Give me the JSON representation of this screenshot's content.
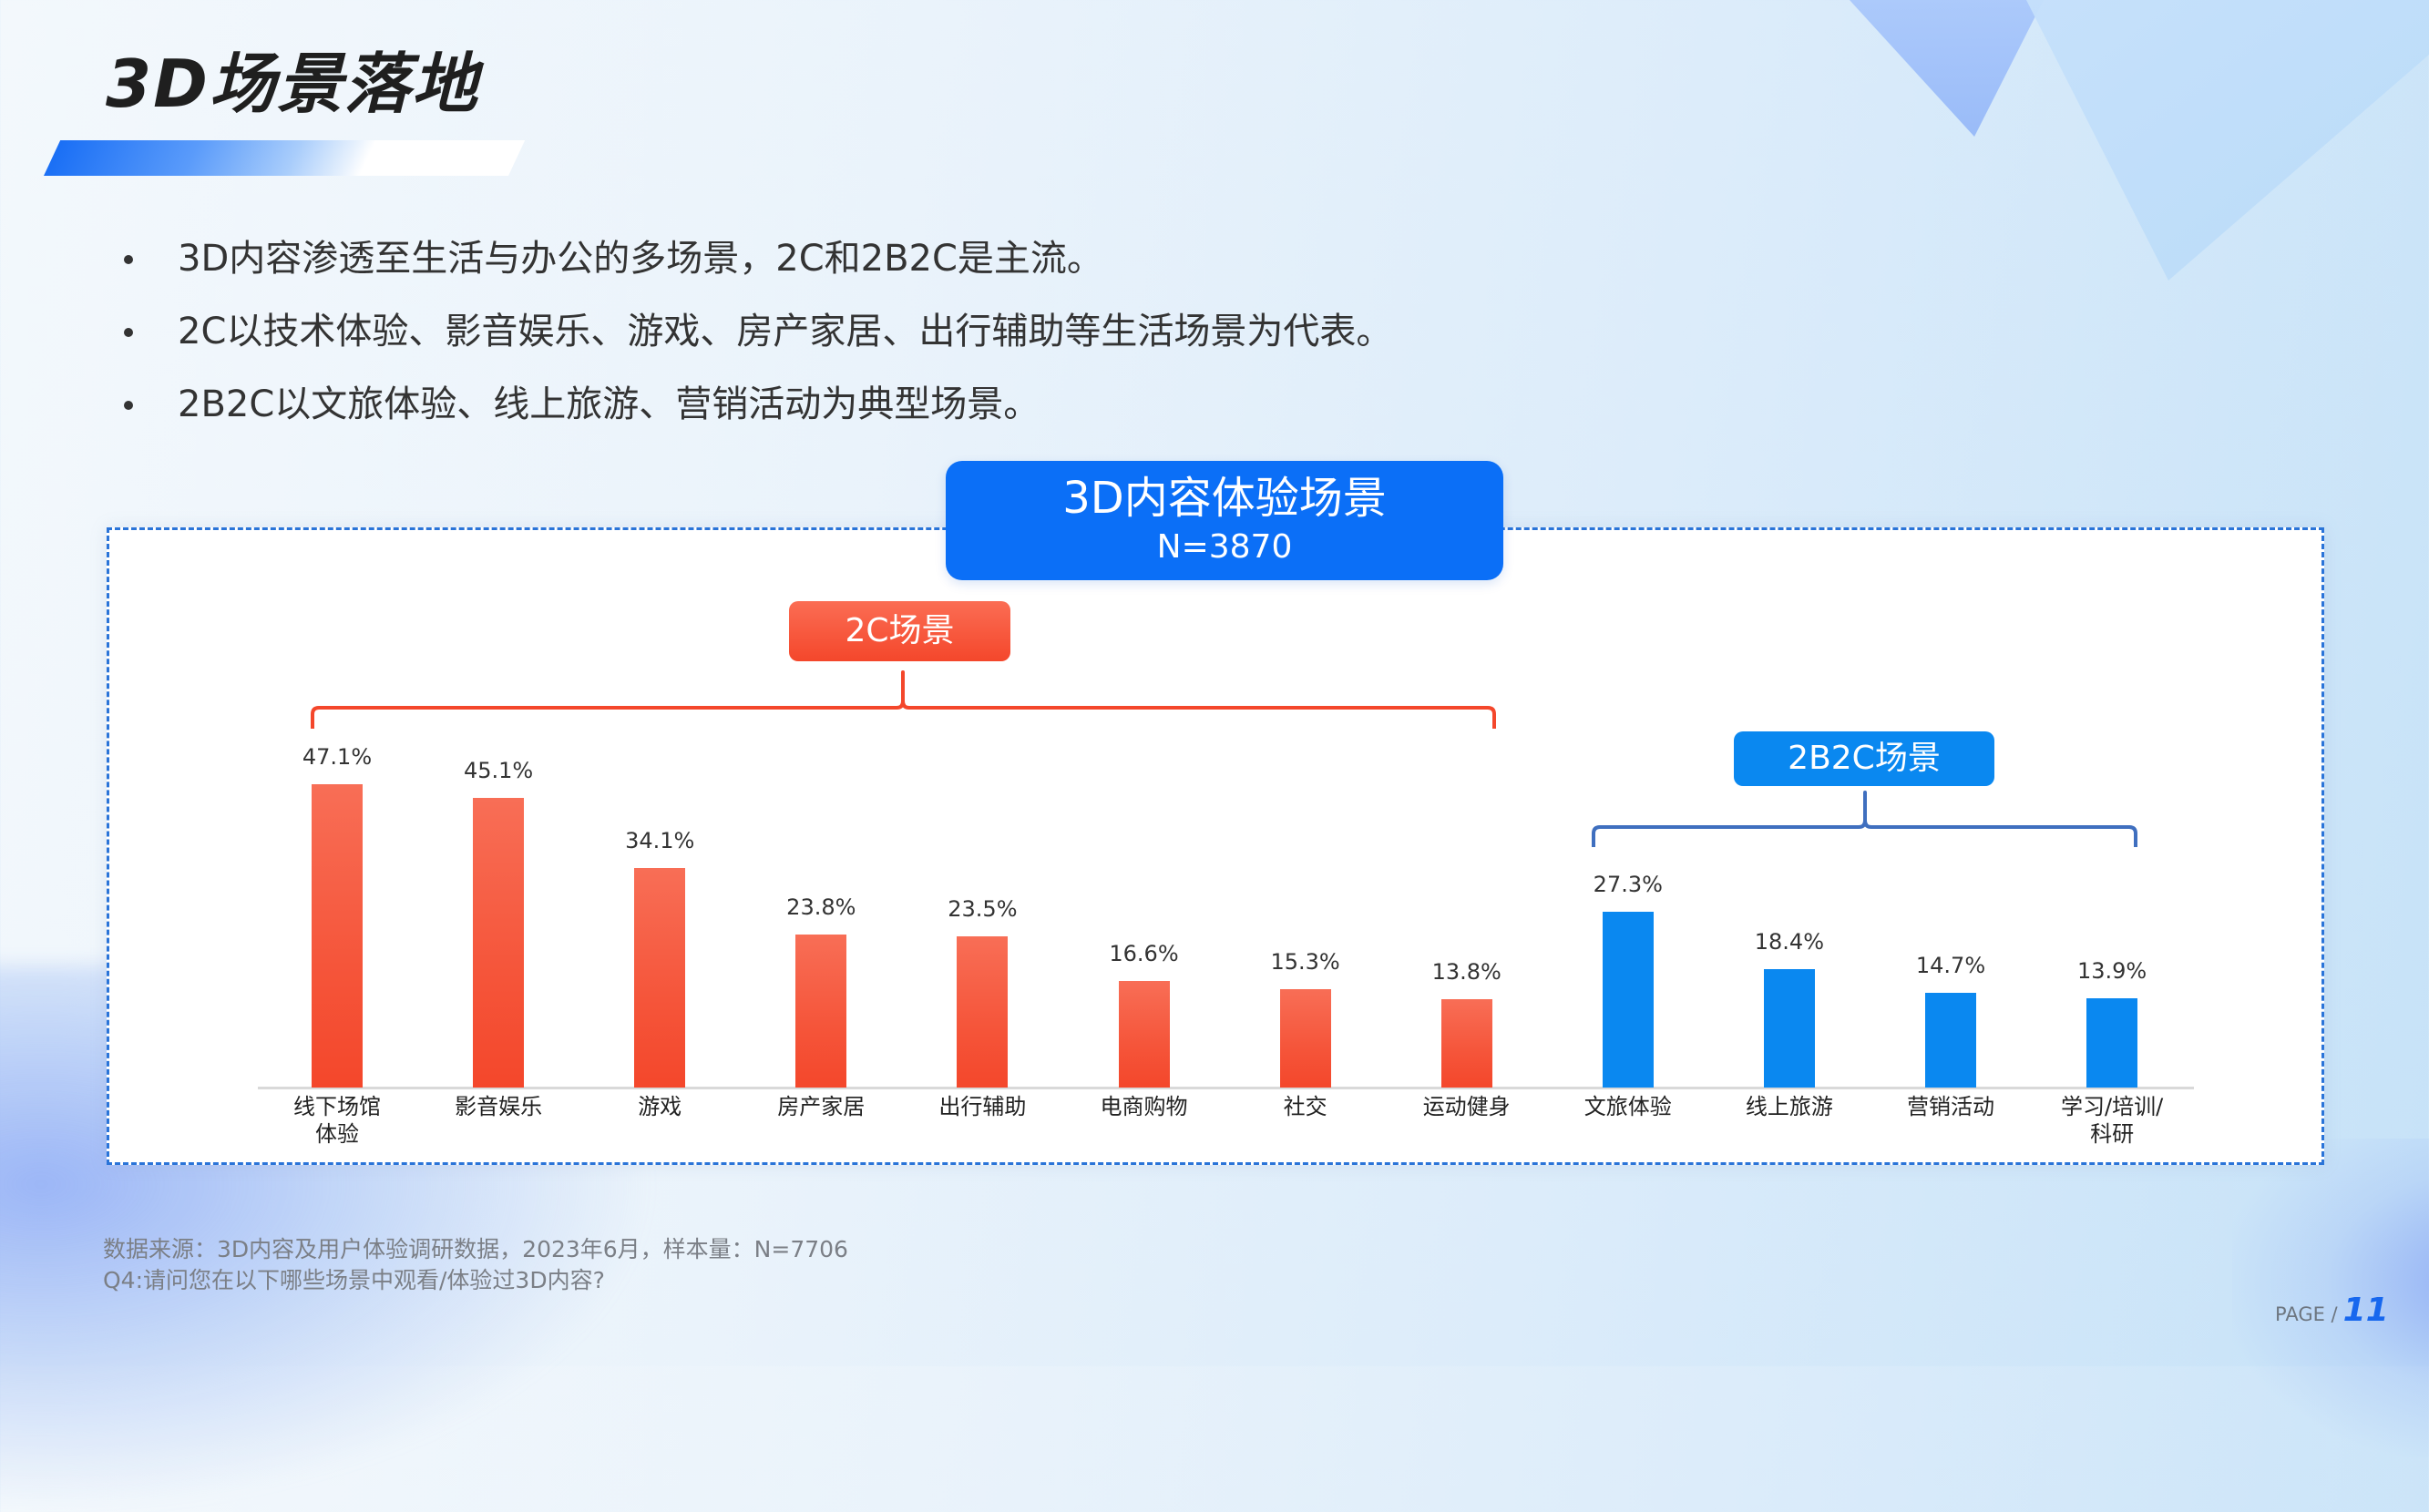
{
  "page": {
    "title": "3D场景落地",
    "bullets": [
      "3D内容渗透至生活与办公的多场景，2C和2B2C是主流。",
      "2C以技术体验、影音娱乐、游戏、房产家居、出行辅助等生活场景为代表。",
      "2B2C以文旅体验、线上旅游、营销活动为典型场景。"
    ],
    "footnotes": [
      "数据来源：3D内容及用户体验调研数据，2023年6月，样本量：N=7706",
      "Q4:请问您在以下哪些场景中观看/体验过3D内容?"
    ],
    "page_label": "PAGE /",
    "page_number": "11"
  },
  "chart": {
    "header_title": "3D内容体验场景",
    "header_n": "N=3870",
    "group_2c_label": "2C场景",
    "group_2b2c_label": "2B2C场景",
    "colors": {
      "c2c": "#f4472b",
      "c2b2c": "#0a88f0",
      "header": "#0b6ff7",
      "frame_border": "#2a74d8"
    },
    "bars": [
      {
        "label": "线下场馆体验",
        "label_lines": [
          "线下场馆",
          "体验"
        ],
        "value": 47.1,
        "value_text": "47.1%",
        "group": "2C"
      },
      {
        "label": "影音娱乐",
        "label_lines": [
          "影音娱乐"
        ],
        "value": 45.1,
        "value_text": "45.1%",
        "group": "2C"
      },
      {
        "label": "游戏",
        "label_lines": [
          "游戏"
        ],
        "value": 34.1,
        "value_text": "34.1%",
        "group": "2C"
      },
      {
        "label": "房产家居",
        "label_lines": [
          "房产家居"
        ],
        "value": 23.8,
        "value_text": "23.8%",
        "group": "2C"
      },
      {
        "label": "出行辅助",
        "label_lines": [
          "出行辅助"
        ],
        "value": 23.5,
        "value_text": "23.5%",
        "group": "2C"
      },
      {
        "label": "电商购物",
        "label_lines": [
          "电商购物"
        ],
        "value": 16.6,
        "value_text": "16.6%",
        "group": "2C"
      },
      {
        "label": "社交",
        "label_lines": [
          "社交"
        ],
        "value": 15.3,
        "value_text": "15.3%",
        "group": "2C"
      },
      {
        "label": "运动健身",
        "label_lines": [
          "运动健身"
        ],
        "value": 13.8,
        "value_text": "13.8%",
        "group": "2C"
      },
      {
        "label": "文旅体验",
        "label_lines": [
          "文旅体验"
        ],
        "value": 27.3,
        "value_text": "27.3%",
        "group": "2B2C"
      },
      {
        "label": "线上旅游",
        "label_lines": [
          "线上旅游"
        ],
        "value": 18.4,
        "value_text": "18.4%",
        "group": "2B2C"
      },
      {
        "label": "营销活动",
        "label_lines": [
          "营销活动"
        ],
        "value": 14.7,
        "value_text": "14.7%",
        "group": "2B2C"
      },
      {
        "label": "学习/培训/科研",
        "label_lines": [
          "学习/培训/",
          "科研"
        ],
        "value": 13.9,
        "value_text": "13.9%",
        "group": "2B2C"
      }
    ]
  },
  "chart_data": {
    "type": "bar",
    "title": "3D内容体验场景",
    "subtitle": "N=3870",
    "xlabel": "",
    "ylabel": "",
    "categories": [
      "线下场馆体验",
      "影音娱乐",
      "游戏",
      "房产家居",
      "出行辅助",
      "电商购物",
      "社交",
      "运动健身",
      "文旅体验",
      "线上旅游",
      "营销活动",
      "学习/培训/科研"
    ],
    "values": [
      47.1,
      45.1,
      34.1,
      23.8,
      23.5,
      16.6,
      15.3,
      13.8,
      27.3,
      18.4,
      14.7,
      13.9
    ],
    "unit": "%",
    "groups": [
      {
        "name": "2C场景",
        "categories": [
          "线下场馆体验",
          "影音娱乐",
          "游戏",
          "房产家居",
          "出行辅助",
          "电商购物",
          "社交",
          "运动健身"
        ],
        "color": "#f4472b"
      },
      {
        "name": "2B2C场景",
        "categories": [
          "文旅体验",
          "线上旅游",
          "营销活动",
          "学习/培训/科研"
        ],
        "color": "#0a88f0"
      }
    ],
    "data_labels": true,
    "grid": false,
    "legend": "none (group badges above brackets)",
    "ylim": [
      0,
      50
    ]
  }
}
